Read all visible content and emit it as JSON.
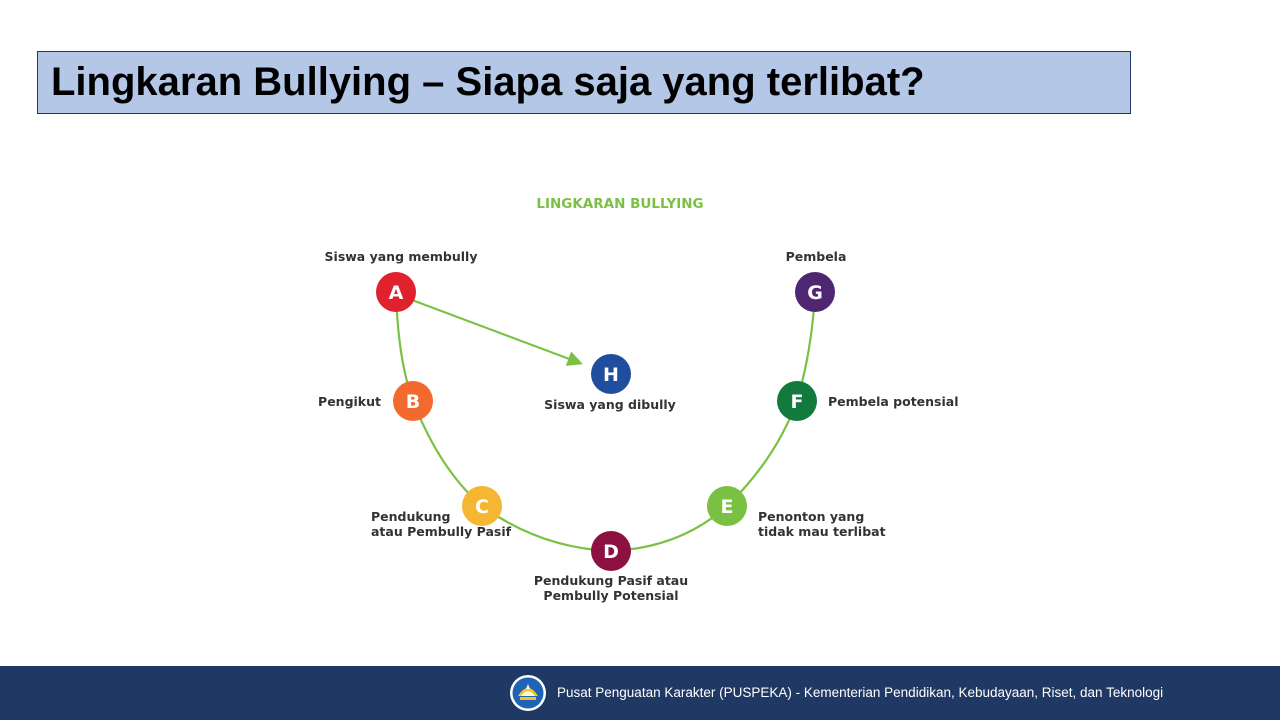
{
  "slide": {
    "title": "Lingkaran Bullying – Siapa saja yang terlibat?"
  },
  "diagram": {
    "heading": "LINGKARAN BULLYING",
    "heading_color": "#7ac143",
    "line_color": "#7ac143",
    "nodes": {
      "a": {
        "letter": "A",
        "color": "#e0222f",
        "label": [
          "Siswa yang membully"
        ]
      },
      "b": {
        "letter": "B",
        "color": "#f26a2e",
        "label": [
          "Pengikut"
        ]
      },
      "c": {
        "letter": "C",
        "color": "#f5b731",
        "label": [
          "Pendukung",
          "atau Pembully Pasif"
        ]
      },
      "d": {
        "letter": "D",
        "color": "#8c1141",
        "label": [
          "Pendukung Pasif atau",
          "Pembully Potensial"
        ]
      },
      "e": {
        "letter": "E",
        "color": "#7ac143",
        "label": [
          "Penonton yang",
          "tidak mau terlibat"
        ]
      },
      "f": {
        "letter": "F",
        "color": "#137a3e",
        "label": [
          "Pembela potensial"
        ]
      },
      "g": {
        "letter": "G",
        "color": "#4f2672",
        "label": [
          "Pembela"
        ]
      },
      "h": {
        "letter": "H",
        "color": "#1f4e9e",
        "label": [
          "Siswa yang dibully"
        ]
      }
    }
  },
  "footer": {
    "text": "Pusat Penguatan Karakter (PUSPEKA) - Kementerian Pendidikan, Kebudayaan, Riset, dan Teknologi",
    "logo_icon": "tut-wuri-handayani-logo-icon"
  }
}
